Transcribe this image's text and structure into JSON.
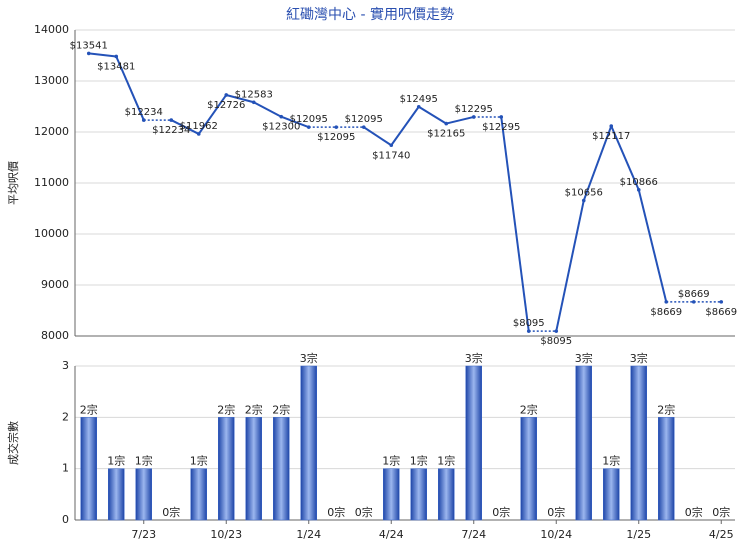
{
  "chart_data": [
    {
      "type": "line",
      "title": "紅磡灣中心 - 實用呎價走勢",
      "y_label": "平均呎價",
      "color": "#2452b8",
      "values": [
        13541,
        13481,
        12234,
        12234,
        11962,
        12726,
        12583,
        12300,
        12095,
        12095,
        12095,
        11740,
        12495,
        12165,
        12295,
        12295,
        8095,
        8095,
        10656,
        12117,
        10866,
        8669,
        8669,
        8669
      ],
      "value_labels": [
        "$13541",
        "$13481",
        "$12234",
        "$12234",
        "$11962",
        "$12726",
        "$12583",
        "$12300",
        "$12095",
        "$12095",
        "$12095",
        "$11740",
        "$12495",
        "$12165",
        "$12295",
        "$12295",
        "$8095",
        "$8095",
        "$10656",
        "$12117",
        "$10866",
        "$8669",
        "$8669",
        "$8669"
      ],
      "ylim": [
        8000,
        14000
      ],
      "yticks": [
        8000,
        9000,
        10000,
        11000,
        12000,
        13000,
        14000
      ],
      "grid": true
    },
    {
      "type": "bar",
      "y_label": "成交宗數",
      "color": "#3a66c8",
      "categories": [
        null,
        null,
        "7/23",
        null,
        null,
        "10/23",
        null,
        null,
        "1/24",
        null,
        null,
        "4/24",
        null,
        null,
        "7/24",
        null,
        null,
        "10/24",
        null,
        null,
        "1/25",
        null,
        null,
        "4/25"
      ],
      "values": [
        2,
        1,
        1,
        0,
        1,
        2,
        2,
        2,
        3,
        0,
        0,
        1,
        1,
        1,
        3,
        0,
        2,
        0,
        3,
        1,
        3,
        2,
        0,
        0
      ],
      "value_labels": [
        "2宗",
        "1宗",
        "1宗",
        "0宗",
        "1宗",
        "2宗",
        "2宗",
        "2宗",
        "3宗",
        "0宗",
        "0宗",
        "1宗",
        "1宗",
        "1宗",
        "3宗",
        "0宗",
        "2宗",
        "0宗",
        "3宗",
        "1宗",
        "3宗",
        "2宗",
        "0宗",
        "0宗"
      ],
      "ylim": [
        0,
        3
      ],
      "yticks": [
        0,
        1,
        2,
        3
      ],
      "grid": true
    }
  ]
}
